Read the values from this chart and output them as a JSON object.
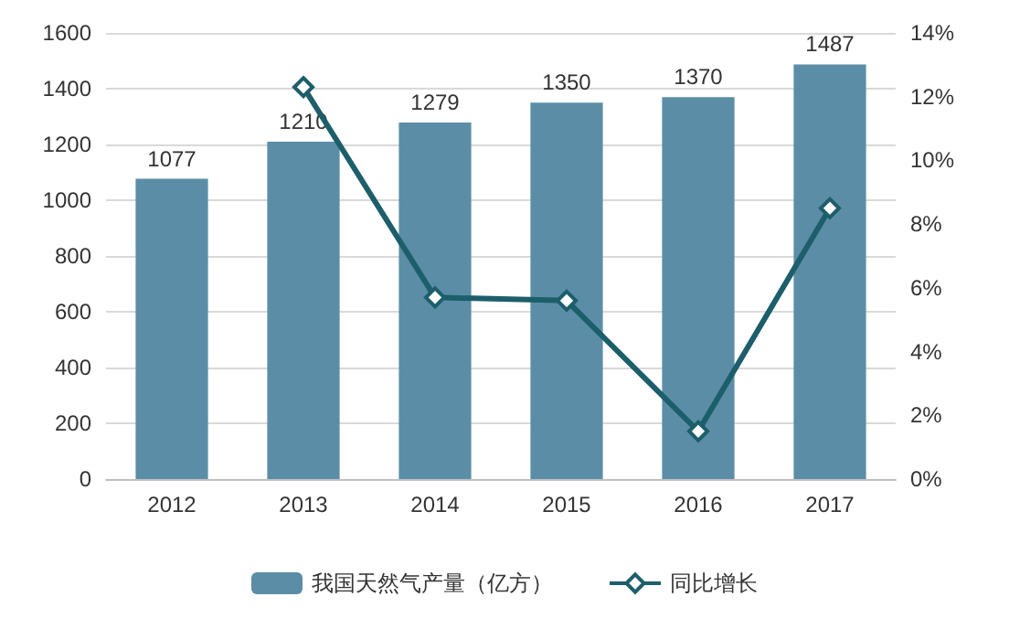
{
  "chart_data": {
    "type": "bar",
    "categories": [
      "2012",
      "2013",
      "2014",
      "2015",
      "2016",
      "2017"
    ],
    "series": [
      {
        "name": "我国天然气产量（亿方）",
        "color": "#5b8ea6",
        "values": [
          1077,
          1210,
          1279,
          1350,
          1370,
          1487
        ],
        "data_labels": true
      },
      {
        "name": "同比增长",
        "type": "line",
        "axis": "y2",
        "color": "#1d5e6b",
        "marker": "diamond",
        "values": [
          null,
          12.3,
          5.7,
          5.6,
          1.5,
          8.5
        ]
      }
    ],
    "ylim": [
      0,
      1600
    ],
    "yticks": [
      0,
      200,
      400,
      600,
      800,
      1000,
      1200,
      1400,
      1600
    ],
    "y2lim": [
      0,
      14
    ],
    "y2ticks": [
      {
        "value": 0,
        "label": "0%"
      },
      {
        "value": 2,
        "label": "2%"
      },
      {
        "value": 4,
        "label": "4%"
      },
      {
        "value": 6,
        "label": "6%"
      },
      {
        "value": 8,
        "label": "8%"
      },
      {
        "value": 10,
        "label": "10%"
      },
      {
        "value": 12,
        "label": "12%"
      },
      {
        "value": 14,
        "label": "14%"
      }
    ],
    "grid": "y",
    "legend": "bottom"
  }
}
